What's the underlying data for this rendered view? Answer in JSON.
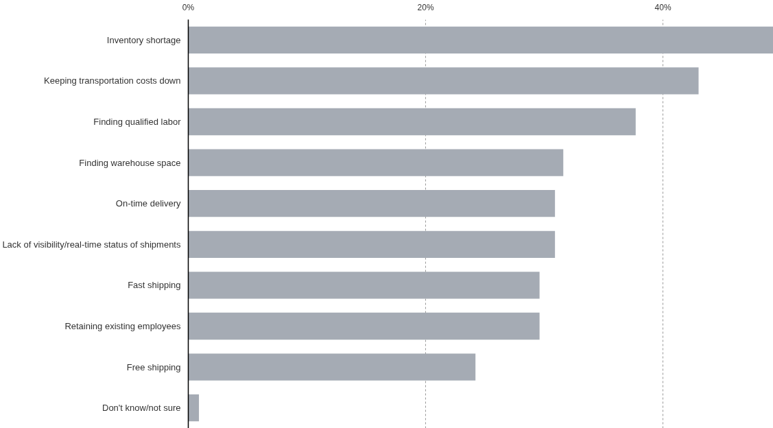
{
  "chart_data": {
    "type": "bar",
    "orientation": "horizontal",
    "categories": [
      "Inventory shortage",
      "Keeping transportation costs down",
      "Finding qualified labor",
      "Finding warehouse space",
      "On-time delivery",
      "Lack of visibility/real-time status of shipments",
      "Fast shipping",
      "Retaining existing employees",
      "Free shipping",
      "Don't know/not sure"
    ],
    "values": [
      49.3,
      43.0,
      37.7,
      31.6,
      30.9,
      30.9,
      29.6,
      29.6,
      24.2,
      0.9
    ],
    "color": "#a5abb4",
    "xlim": [
      0,
      49.3
    ],
    "xticks": [
      {
        "value": 0,
        "label": "0%"
      },
      {
        "value": 20,
        "label": "20%"
      },
      {
        "value": 40,
        "label": "40%"
      }
    ],
    "grid": "x"
  }
}
